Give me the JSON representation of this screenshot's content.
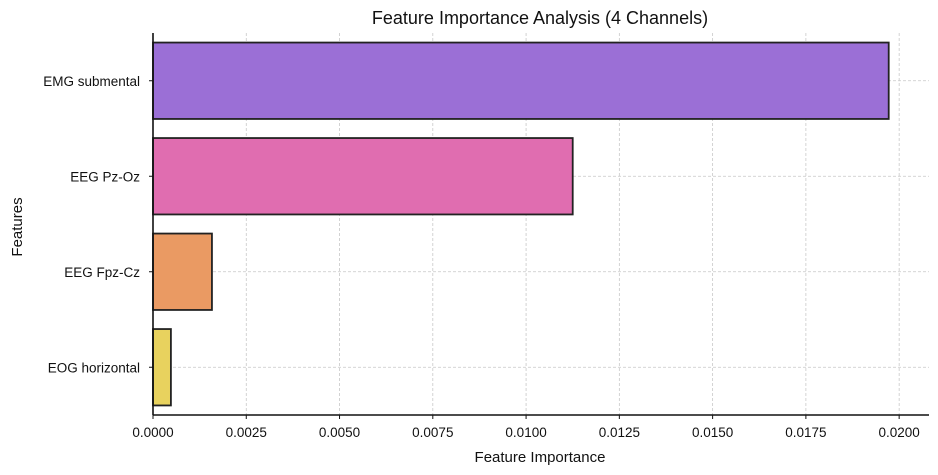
{
  "chart_data": {
    "type": "bar",
    "orientation": "horizontal",
    "title": "Feature Importance Analysis (4 Channels)",
    "xlabel": "Feature Importance",
    "ylabel": "Features",
    "categories": [
      "EMG submental",
      "EEG Pz-Oz",
      "EEG Fpz-Cz",
      "EOG horizontal"
    ],
    "values": [
      0.01972,
      0.01125,
      0.00158,
      0.00048
    ],
    "colors": [
      "#9b6fd6",
      "#e06db0",
      "#ea9a63",
      "#e8d25e"
    ],
    "xlim": [
      0,
      0.0208
    ],
    "xticks": [
      0.0,
      0.0025,
      0.005,
      0.0075,
      0.01,
      0.0125,
      0.015,
      0.0175,
      0.02
    ],
    "xtick_labels": [
      "0.0000",
      "0.0025",
      "0.0050",
      "0.0075",
      "0.0100",
      "0.0125",
      "0.0150",
      "0.0175",
      "0.0200"
    ],
    "grid": true
  }
}
